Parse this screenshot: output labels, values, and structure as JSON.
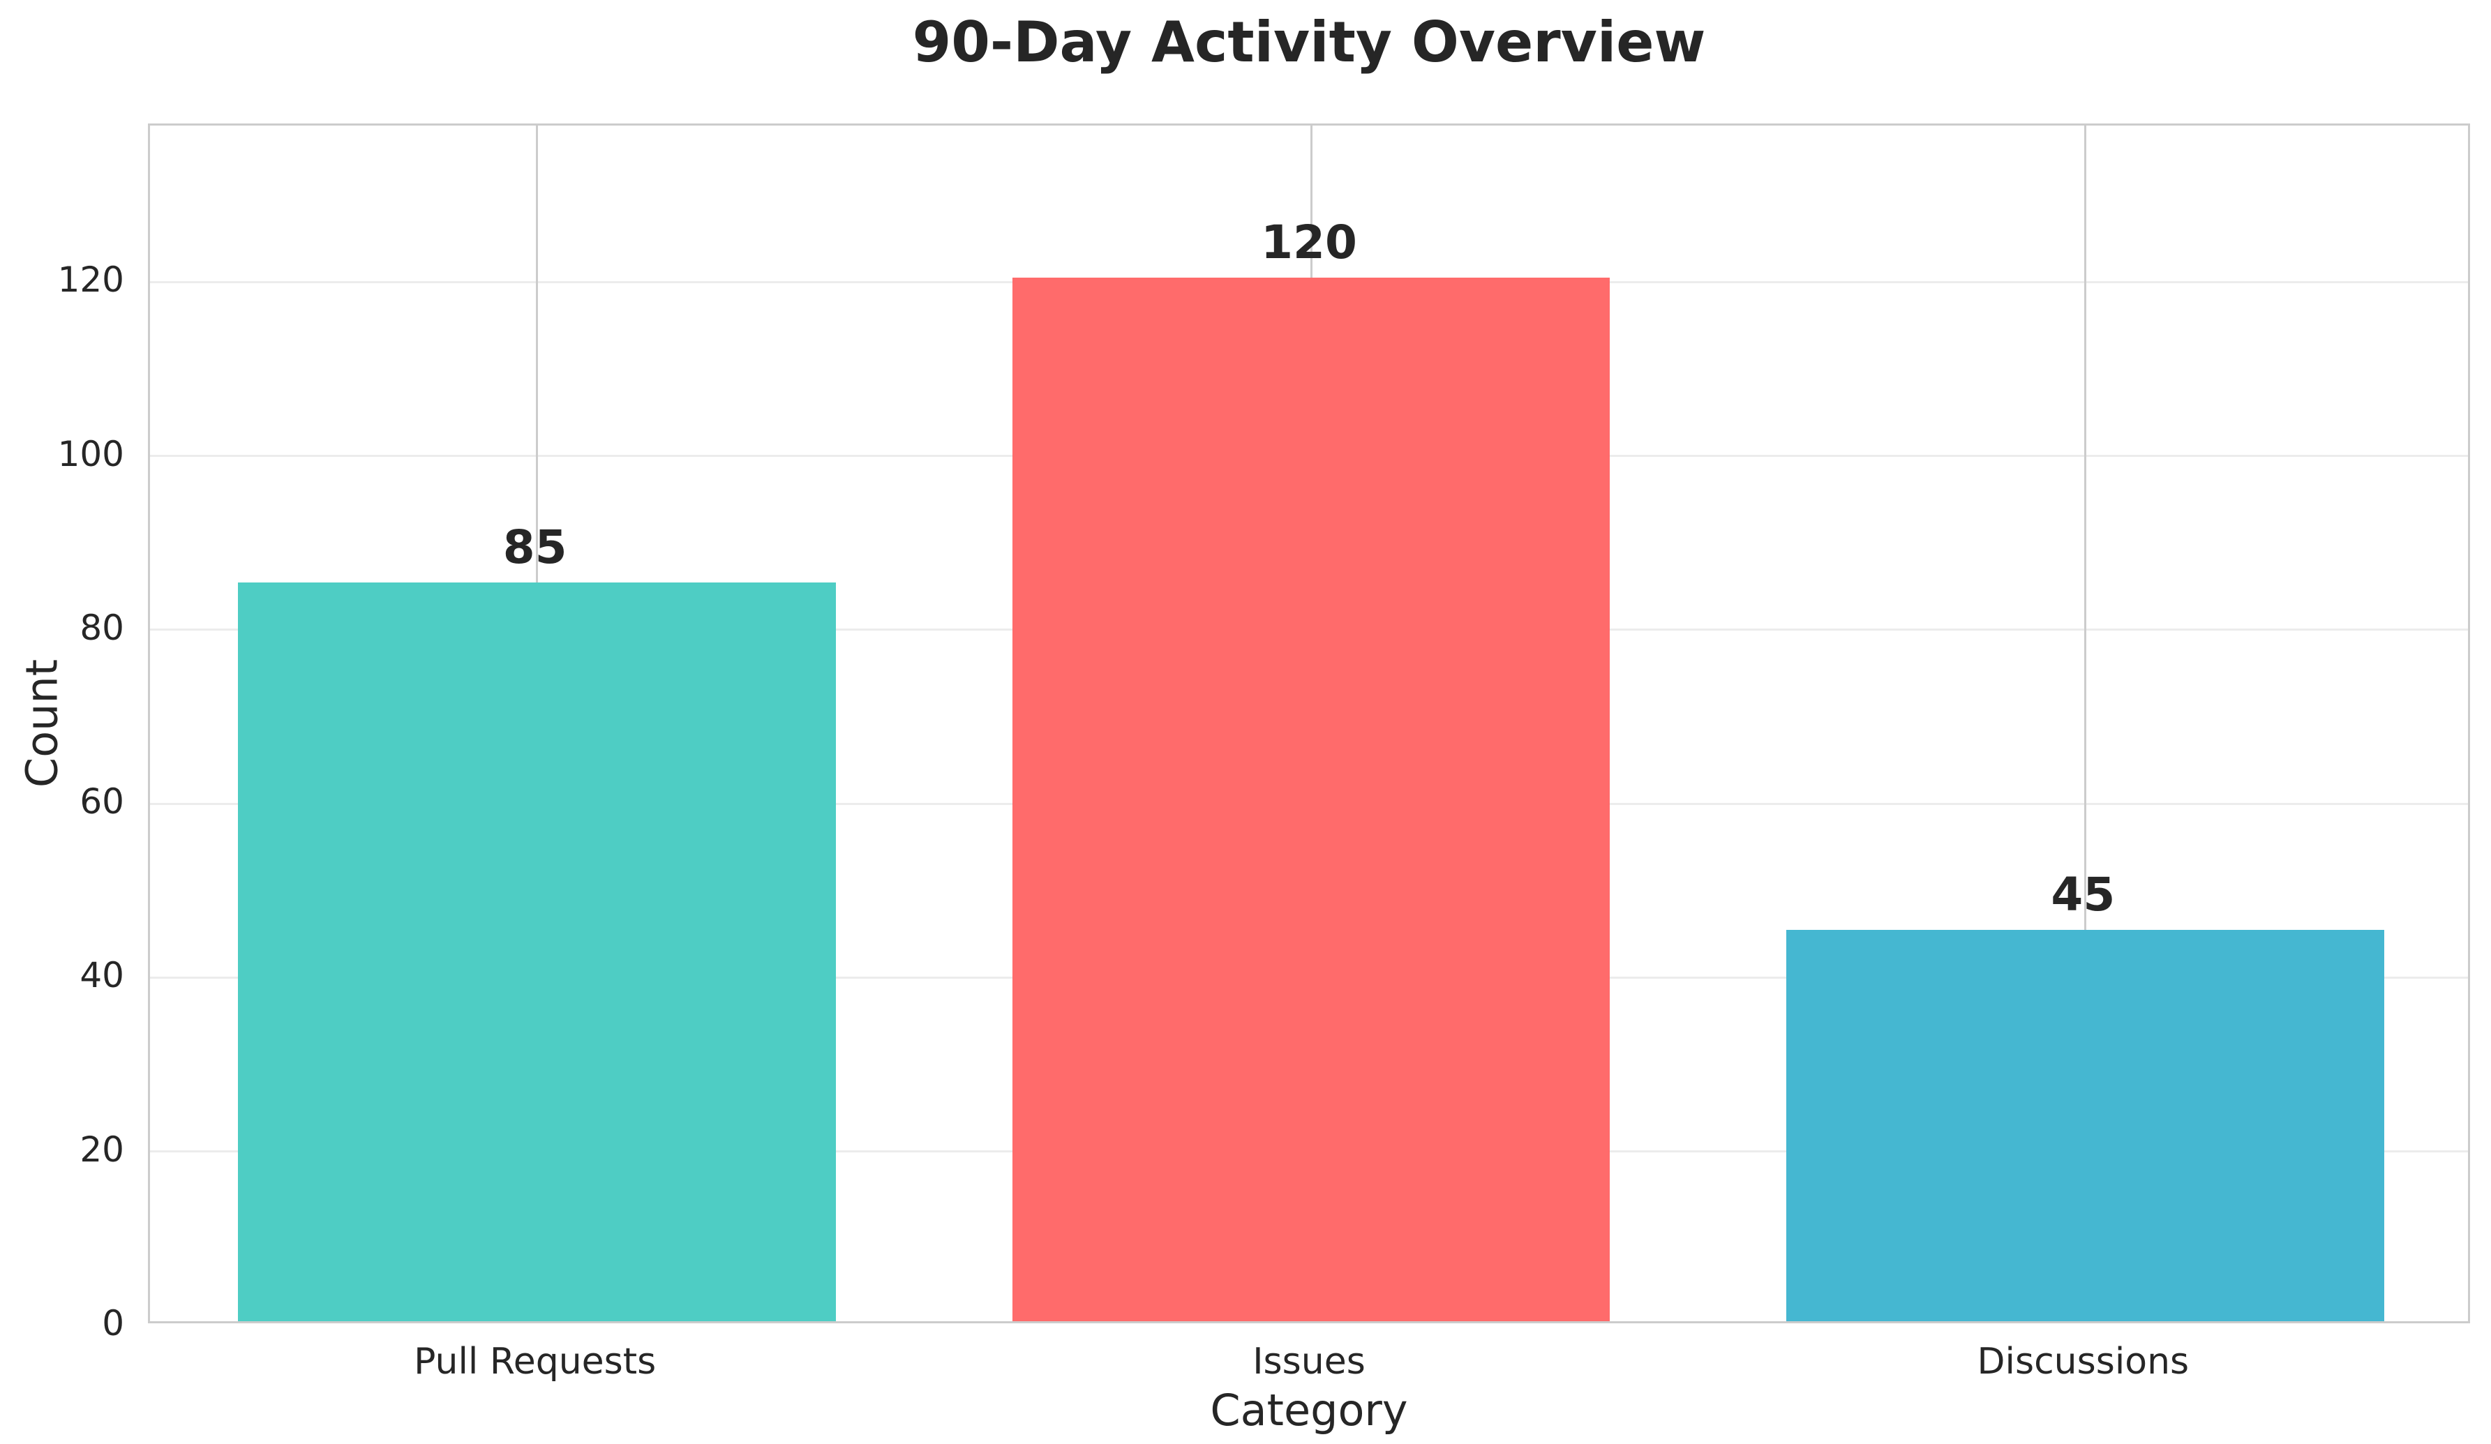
{
  "chart_data": {
    "type": "bar",
    "title": "90-Day Activity Overview",
    "xlabel": "Category",
    "ylabel": "Count",
    "categories": [
      "Pull Requests",
      "Issues",
      "Discussions"
    ],
    "values": [
      85,
      120,
      45
    ],
    "value_labels": [
      "85",
      "120",
      "45"
    ],
    "bar_colors": [
      "#4ECDC4",
      "#FF6B6B",
      "#45B7D1"
    ],
    "yticks": [
      0,
      20,
      40,
      60,
      80,
      100,
      120
    ],
    "ylim": [
      0,
      138
    ],
    "bar_width_fraction": 0.2575,
    "grid": "on",
    "legend": "none",
    "background_color": "#ffffff",
    "text_color": "#262626",
    "horizontal_grid_color": "#ececec",
    "vertical_grid_color": "#cccccc",
    "spine_color": "#cccccc"
  }
}
